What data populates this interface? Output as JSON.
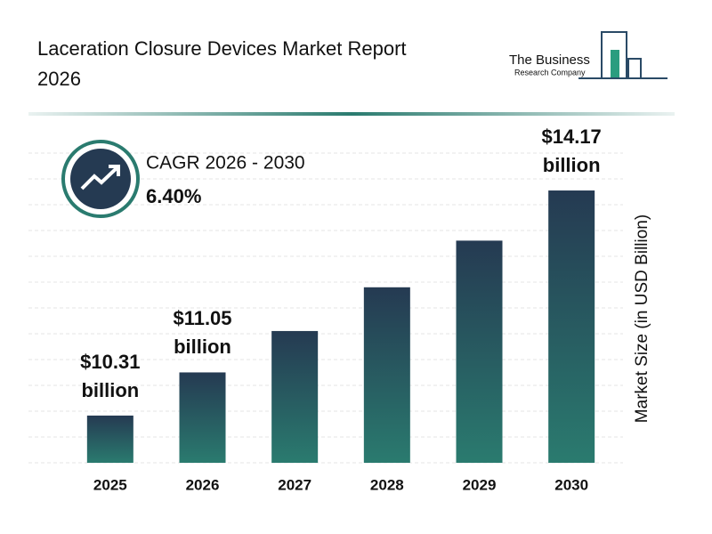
{
  "title": "Laceration Closure Devices Market Report 2026",
  "logo": {
    "line1": "The Business",
    "line2": "Research Company"
  },
  "cagr": {
    "label": "CAGR 2026 - 2030",
    "value": "6.40%"
  },
  "chart_data": {
    "type": "bar",
    "categories": [
      "2025",
      "2026",
      "2027",
      "2028",
      "2029",
      "2030"
    ],
    "values": [
      10.31,
      11.05,
      11.76,
      12.51,
      13.31,
      14.17
    ],
    "value_labels": [
      "$10.31 billion",
      "$11.05 billion",
      null,
      null,
      null,
      "$14.17 billion"
    ],
    "y_label": "Market Size (in USD Billion)",
    "color_top": "#253a52",
    "color_bottom": "#2a7b6f",
    "ylim": [
      9.5,
      15.3
    ],
    "grid": true
  }
}
